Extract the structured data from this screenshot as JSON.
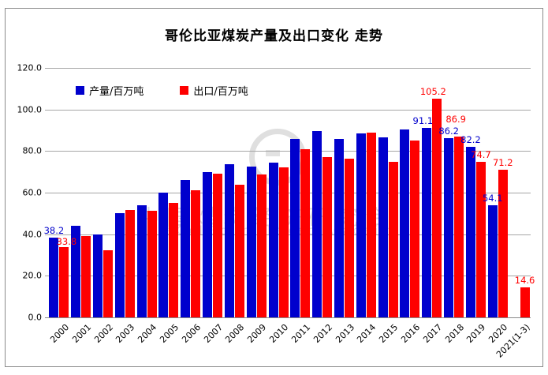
{
  "title": "哥伦比亚煤炭产量及出口变化 走势",
  "colors": {
    "production": "#0000cd",
    "export": "#fe0000",
    "grid": "#a6a6a6",
    "frame": "#8a8a8a"
  },
  "legend": [
    {
      "label": "产量/百万吨",
      "color": "#0000cd"
    },
    {
      "label": "出口/百万吨",
      "color": "#fe0000"
    }
  ],
  "watermark": {
    "line1": "中国煤炭经济研究会",
    "line2": "China Coal Economic Research Association"
  },
  "chart_data": {
    "type": "bar",
    "title": "哥伦比亚煤炭产量及出口变化 走势",
    "categories": [
      "2000",
      "2001",
      "2002",
      "2003",
      "2004",
      "2005",
      "2006",
      "2007",
      "2008",
      "2009",
      "2010",
      "2011",
      "2012",
      "2013",
      "2014",
      "2015",
      "2016",
      "2017",
      "2018",
      "2019",
      "2020",
      "2021(1-3)"
    ],
    "series": [
      {
        "name": "产量/百万吨",
        "color": "#0000cd",
        "values": [
          38.2,
          44.0,
          39.8,
          50.0,
          53.9,
          60.0,
          66.2,
          69.7,
          73.5,
          72.7,
          74.3,
          85.7,
          89.5,
          85.8,
          88.6,
          86.5,
          90.5,
          91.1,
          86.2,
          82.2,
          54.1,
          null
        ]
      },
      {
        "name": "出口/百万吨",
        "color": "#fe0000",
        "values": [
          33.8,
          39.2,
          32.2,
          51.5,
          51.2,
          55.0,
          61.0,
          69.3,
          63.8,
          68.6,
          72.0,
          81.0,
          77.2,
          76.5,
          89.0,
          74.8,
          85.0,
          105.2,
          86.9,
          74.7,
          71.2,
          14.6
        ]
      }
    ],
    "ylim": [
      0,
      120
    ],
    "yticks": [
      0,
      20,
      40,
      60,
      80,
      100,
      120
    ],
    "ytick_labels": [
      "0.0",
      "20.0",
      "40.0",
      "60.0",
      "80.0",
      "100.0",
      "120.0"
    ],
    "grid": "horizontal",
    "legend_position": "top-left",
    "xlabel": "",
    "ylabel": "",
    "data_labels": [
      {
        "c": 0,
        "s": 0,
        "text": "38.2"
      },
      {
        "c": 0,
        "s": 1,
        "text": "33.8"
      },
      {
        "c": 17,
        "s": 0,
        "text": "91.1"
      },
      {
        "c": 17,
        "s": 1,
        "text": "105.2"
      },
      {
        "c": 18,
        "s": 0,
        "text": "86.2"
      },
      {
        "c": 18,
        "s": 1,
        "text": "86.9"
      },
      {
        "c": 19,
        "s": 0,
        "text": "82.2"
      },
      {
        "c": 19,
        "s": 1,
        "text": "74.7"
      },
      {
        "c": 20,
        "s": 0,
        "text": "54.1"
      },
      {
        "c": 20,
        "s": 1,
        "text": "71.2"
      },
      {
        "c": 21,
        "s": 1,
        "text": "14.6"
      }
    ]
  }
}
